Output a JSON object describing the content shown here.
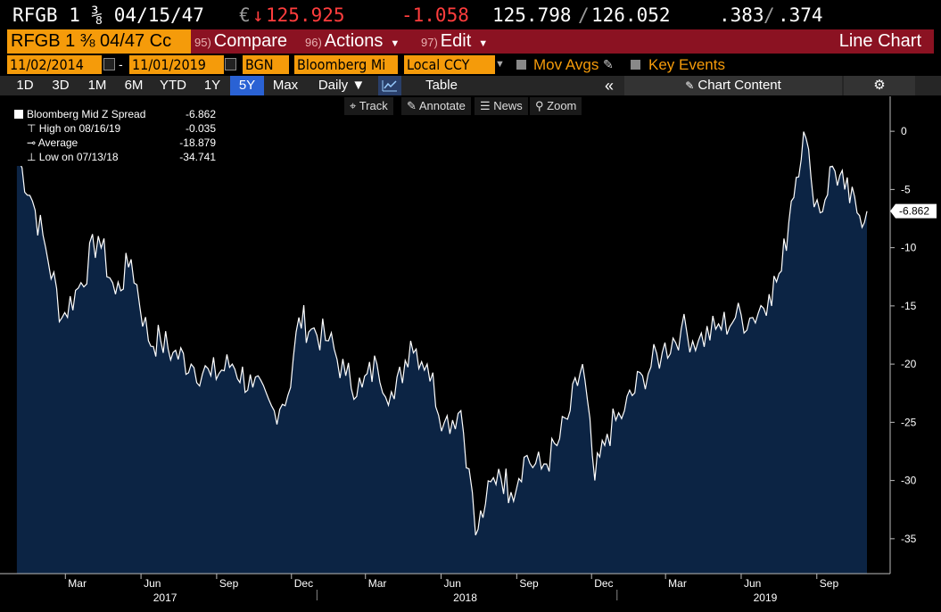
{
  "quote": {
    "ticker": "RFGB 1 ⅜ 04/15/47",
    "ccy": "€",
    "arrow": "↓",
    "price": "125.925",
    "change": "-1.058",
    "bid": "125.798",
    "ask": "126.052",
    "ylda": ".383",
    "yldb": ".374",
    "sep": "/"
  },
  "header": {
    "security": "RFGB 1 ⅜ 04/47 Cc",
    "compare_num": "95)",
    "compare": "Compare",
    "actions_num": "96)",
    "actions": "Actions",
    "edit_num": "97)",
    "edit": "Edit",
    "view_title": "Line Chart"
  },
  "settings": {
    "start_date": "11/02/2014",
    "dash": "-",
    "end_date": "11/01/2019",
    "source": "BGN",
    "field": "Bloomberg Mi",
    "currency": "Local CCY",
    "mov_avgs": "Mov Avgs",
    "key_events": "Key Events"
  },
  "ranges": {
    "items": [
      "1D",
      "3D",
      "1M",
      "6M",
      "YTD",
      "1Y",
      "5Y",
      "Max"
    ],
    "selected": "5Y",
    "frequency": "Daily",
    "table": "Table",
    "chart_content": "Chart Content"
  },
  "tools": {
    "track": "Track",
    "annotate": "Annotate",
    "news": "News",
    "zoom": "Zoom"
  },
  "legend": {
    "series_name": "Bloomberg Mid Z Spread",
    "series_value": "-6.862",
    "high_label": "High on 08/16/19",
    "high_value": "-0.035",
    "avg_label": "Average",
    "avg_value": "-18.879",
    "low_label": "Low on 07/13/18",
    "low_value": "-34.741"
  },
  "colors": {
    "area": "#0c2444",
    "accent": "#f59b0a",
    "header": "#8b1222",
    "selected": "#2a62d4",
    "down": "#ff3d3d"
  },
  "chart_data": {
    "type": "area",
    "series": [
      {
        "name": "Bloomberg Mid Z Spread",
        "x": [
          "2017-01-01",
          "2017-01-20",
          "2017-02-05",
          "2017-02-25",
          "2017-03-20",
          "2017-04-10",
          "2017-05-01",
          "2017-05-20",
          "2017-06-10",
          "2017-06-25",
          "2017-07-10",
          "2017-08-01",
          "2017-08-25",
          "2017-09-20",
          "2017-10-15",
          "2017-11-10",
          "2017-11-30",
          "2017-12-10",
          "2017-12-25",
          "2018-01-15",
          "2018-02-05",
          "2018-02-25",
          "2018-03-15",
          "2018-04-05",
          "2018-04-25",
          "2018-05-15",
          "2018-06-05",
          "2018-06-25",
          "2018-07-05",
          "2018-07-13",
          "2018-07-25",
          "2018-08-10",
          "2018-08-25",
          "2018-09-10",
          "2018-10-01",
          "2018-10-20",
          "2018-11-05",
          "2018-11-20",
          "2018-12-05",
          "2018-12-20",
          "2019-01-10",
          "2019-02-01",
          "2019-02-25",
          "2019-03-20",
          "2019-04-10",
          "2019-05-01",
          "2019-05-25",
          "2019-06-15",
          "2019-07-05",
          "2019-07-20",
          "2019-08-01",
          "2019-08-16",
          "2019-08-25",
          "2019-09-05",
          "2019-09-20",
          "2019-10-05",
          "2019-10-20",
          "2019-11-01"
        ],
        "y": [
          -2,
          -6,
          -10,
          -16,
          -13,
          -9,
          -14,
          -11,
          -18,
          -18,
          -19,
          -20,
          -21,
          -20,
          -22,
          -24,
          -22,
          -16,
          -17,
          -18,
          -21,
          -22,
          -20,
          -23,
          -18,
          -20,
          -25,
          -24,
          -29,
          -34.7,
          -32,
          -29,
          -31,
          -28,
          -29,
          -27,
          -24,
          -20,
          -30,
          -26,
          -24,
          -21,
          -19,
          -17,
          -18,
          -17,
          -16,
          -16,
          -14,
          -12,
          -6,
          -0.035,
          -4,
          -7,
          -3,
          -5,
          -7,
          -6.862
        ]
      }
    ],
    "xlabel": "",
    "ylabel": "",
    "ylim": [
      -38,
      3
    ],
    "y_ticks": [
      0,
      -5,
      -10,
      -15,
      -20,
      -25,
      -30,
      -35
    ],
    "x_ticks": [
      "Mar",
      "Jun",
      "Sep",
      "Dec",
      "Mar",
      "Jun",
      "Sep",
      "Dec",
      "Mar",
      "Jun",
      "Sep"
    ],
    "x_years": [
      "2017",
      "2018",
      "2019"
    ],
    "last_value_label": "-6.862",
    "grid": false,
    "legend": "top-left"
  }
}
